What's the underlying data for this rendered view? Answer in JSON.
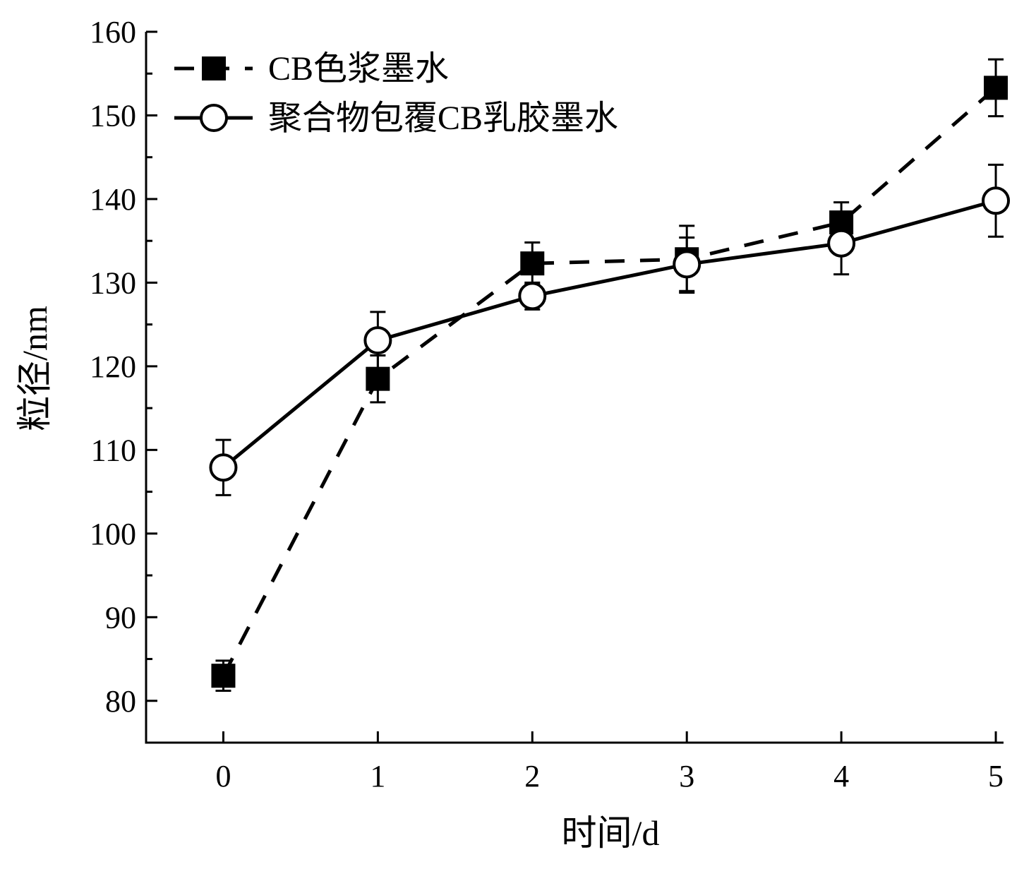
{
  "chart_data": {
    "type": "line",
    "xlabel": "时间/d",
    "ylabel": "粒径/nm",
    "xlim": [
      -0.5,
      5.05
    ],
    "ylim": [
      75,
      160
    ],
    "xticks": [
      0,
      1,
      2,
      3,
      4,
      5
    ],
    "yticks": [
      80,
      90,
      100,
      110,
      120,
      130,
      140,
      150,
      160
    ],
    "grid": false,
    "legend_position": "top-left",
    "series": [
      {
        "name": "CB色浆墨水",
        "marker": "filled-square",
        "line": "dashed",
        "x": [
          0,
          1,
          2,
          3,
          4,
          5
        ],
        "y": [
          83.0,
          118.5,
          132.3,
          132.8,
          137.2,
          153.3
        ],
        "err": [
          1.8,
          2.8,
          2.5,
          4.0,
          2.4,
          3.4
        ]
      },
      {
        "name": "聚合物包覆CB乳胶墨水",
        "marker": "open-circle",
        "line": "solid",
        "x": [
          0,
          1,
          2,
          3,
          4,
          5
        ],
        "y": [
          107.9,
          123.1,
          128.4,
          132.2,
          134.7,
          139.8
        ],
        "err": [
          3.3,
          3.4,
          1.6,
          3.2,
          3.7,
          4.3
        ]
      }
    ]
  }
}
